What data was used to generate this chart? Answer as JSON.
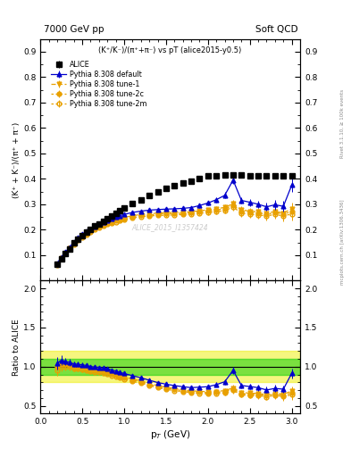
{
  "title_left": "7000 GeV pp",
  "title_right": "Soft QCD",
  "plot_title": "(K⁺/K⁻)/(π⁺+π⁻) vs pT (alice2015-y0.5)",
  "ylabel_main": "(K⁺ + K⁻)/(π⁺ + π⁻)",
  "ylabel_ratio": "Ratio to ALICE",
  "xlabel": "p$_T$ (GeV)",
  "watermark": "ALICE_2015_I1357424",
  "right_label": "Rivet 3.1.10, ≥ 100k events",
  "right_label2": "mcplots.cern.ch [arXiv:1306.3436]",
  "xlim": [
    0.0,
    3.1
  ],
  "ylim_main": [
    0.0,
    0.95
  ],
  "ylim_ratio": [
    0.4,
    2.1
  ],
  "yticks_main": [
    0.1,
    0.2,
    0.3,
    0.4,
    0.5,
    0.6,
    0.7,
    0.8,
    0.9
  ],
  "yticks_ratio": [
    0.5,
    1.0,
    1.5,
    2.0
  ],
  "alice_pt": [
    0.2,
    0.25,
    0.3,
    0.35,
    0.4,
    0.45,
    0.5,
    0.55,
    0.6,
    0.65,
    0.7,
    0.75,
    0.8,
    0.85,
    0.9,
    0.95,
    1.0,
    1.1,
    1.2,
    1.3,
    1.4,
    1.5,
    1.6,
    1.7,
    1.8,
    1.9,
    2.0,
    2.1,
    2.2,
    2.3,
    2.4,
    2.5,
    2.6,
    2.7,
    2.8,
    2.9,
    3.0
  ],
  "alice_y": [
    0.065,
    0.085,
    0.105,
    0.125,
    0.147,
    0.163,
    0.178,
    0.19,
    0.203,
    0.214,
    0.224,
    0.234,
    0.244,
    0.255,
    0.265,
    0.275,
    0.285,
    0.303,
    0.318,
    0.335,
    0.35,
    0.362,
    0.372,
    0.382,
    0.392,
    0.4,
    0.41,
    0.413,
    0.415,
    0.415,
    0.415,
    0.413,
    0.41,
    0.413,
    0.413,
    0.41,
    0.41
  ],
  "alice_yerr": [
    0.004,
    0.004,
    0.004,
    0.004,
    0.004,
    0.004,
    0.004,
    0.004,
    0.004,
    0.004,
    0.004,
    0.004,
    0.004,
    0.004,
    0.004,
    0.004,
    0.004,
    0.004,
    0.004,
    0.005,
    0.005,
    0.005,
    0.005,
    0.005,
    0.005,
    0.005,
    0.005,
    0.008,
    0.008,
    0.008,
    0.008,
    0.008,
    0.008,
    0.008,
    0.008,
    0.008,
    0.008
  ],
  "pythia_pt": [
    0.2,
    0.25,
    0.3,
    0.35,
    0.4,
    0.45,
    0.5,
    0.55,
    0.6,
    0.65,
    0.7,
    0.75,
    0.8,
    0.85,
    0.9,
    0.95,
    1.0,
    1.1,
    1.2,
    1.3,
    1.4,
    1.5,
    1.6,
    1.7,
    1.8,
    1.9,
    2.0,
    2.1,
    2.2,
    2.3,
    2.4,
    2.5,
    2.6,
    2.7,
    2.8,
    2.9,
    3.0
  ],
  "default_y": [
    0.068,
    0.092,
    0.112,
    0.132,
    0.152,
    0.168,
    0.182,
    0.193,
    0.203,
    0.213,
    0.222,
    0.23,
    0.238,
    0.244,
    0.25,
    0.255,
    0.26,
    0.268,
    0.273,
    0.277,
    0.279,
    0.281,
    0.282,
    0.284,
    0.287,
    0.295,
    0.305,
    0.318,
    0.335,
    0.395,
    0.315,
    0.308,
    0.3,
    0.29,
    0.298,
    0.292,
    0.375
  ],
  "default_yerr": [
    0.003,
    0.003,
    0.003,
    0.003,
    0.003,
    0.003,
    0.003,
    0.003,
    0.003,
    0.003,
    0.003,
    0.003,
    0.003,
    0.003,
    0.003,
    0.003,
    0.003,
    0.004,
    0.004,
    0.004,
    0.005,
    0.005,
    0.005,
    0.006,
    0.007,
    0.008,
    0.009,
    0.01,
    0.012,
    0.015,
    0.013,
    0.014,
    0.015,
    0.016,
    0.018,
    0.02,
    0.025
  ],
  "tune1_y": [
    0.065,
    0.088,
    0.108,
    0.128,
    0.147,
    0.162,
    0.176,
    0.186,
    0.196,
    0.205,
    0.213,
    0.221,
    0.228,
    0.234,
    0.239,
    0.244,
    0.248,
    0.255,
    0.26,
    0.263,
    0.265,
    0.267,
    0.268,
    0.269,
    0.271,
    0.274,
    0.278,
    0.282,
    0.288,
    0.302,
    0.278,
    0.273,
    0.27,
    0.265,
    0.272,
    0.266,
    0.282
  ],
  "tune1_yerr": [
    0.003,
    0.003,
    0.003,
    0.003,
    0.003,
    0.003,
    0.003,
    0.003,
    0.003,
    0.003,
    0.003,
    0.003,
    0.003,
    0.003,
    0.003,
    0.003,
    0.003,
    0.004,
    0.004,
    0.004,
    0.005,
    0.005,
    0.005,
    0.006,
    0.007,
    0.008,
    0.009,
    0.01,
    0.012,
    0.015,
    0.013,
    0.014,
    0.015,
    0.016,
    0.018,
    0.02,
    0.025
  ],
  "tune2c_y": [
    0.065,
    0.088,
    0.108,
    0.128,
    0.147,
    0.162,
    0.175,
    0.185,
    0.195,
    0.204,
    0.212,
    0.219,
    0.226,
    0.231,
    0.237,
    0.241,
    0.245,
    0.252,
    0.256,
    0.259,
    0.261,
    0.263,
    0.264,
    0.265,
    0.267,
    0.27,
    0.274,
    0.278,
    0.282,
    0.296,
    0.272,
    0.268,
    0.265,
    0.26,
    0.268,
    0.261,
    0.272
  ],
  "tune2c_yerr": [
    0.003,
    0.003,
    0.003,
    0.003,
    0.003,
    0.003,
    0.003,
    0.003,
    0.003,
    0.003,
    0.003,
    0.003,
    0.003,
    0.003,
    0.003,
    0.003,
    0.003,
    0.004,
    0.004,
    0.004,
    0.005,
    0.005,
    0.005,
    0.006,
    0.007,
    0.008,
    0.009,
    0.01,
    0.012,
    0.015,
    0.013,
    0.014,
    0.015,
    0.016,
    0.018,
    0.02,
    0.025
  ],
  "tune2m_y": [
    0.062,
    0.085,
    0.105,
    0.124,
    0.143,
    0.158,
    0.171,
    0.181,
    0.191,
    0.2,
    0.207,
    0.214,
    0.221,
    0.226,
    0.231,
    0.236,
    0.24,
    0.246,
    0.251,
    0.254,
    0.256,
    0.257,
    0.258,
    0.26,
    0.261,
    0.264,
    0.268,
    0.271,
    0.275,
    0.289,
    0.265,
    0.261,
    0.258,
    0.254,
    0.26,
    0.254,
    0.262
  ],
  "tune2m_yerr": [
    0.003,
    0.003,
    0.003,
    0.003,
    0.003,
    0.003,
    0.003,
    0.003,
    0.003,
    0.003,
    0.003,
    0.003,
    0.003,
    0.003,
    0.003,
    0.003,
    0.003,
    0.004,
    0.004,
    0.004,
    0.005,
    0.005,
    0.005,
    0.006,
    0.007,
    0.008,
    0.009,
    0.01,
    0.012,
    0.015,
    0.013,
    0.014,
    0.015,
    0.016,
    0.018,
    0.02,
    0.025
  ],
  "color_alice": "#000000",
  "color_default": "#0000cc",
  "color_orange": "#e8a000",
  "band_green": "#00cc00",
  "band_yellow": "#eeee00"
}
